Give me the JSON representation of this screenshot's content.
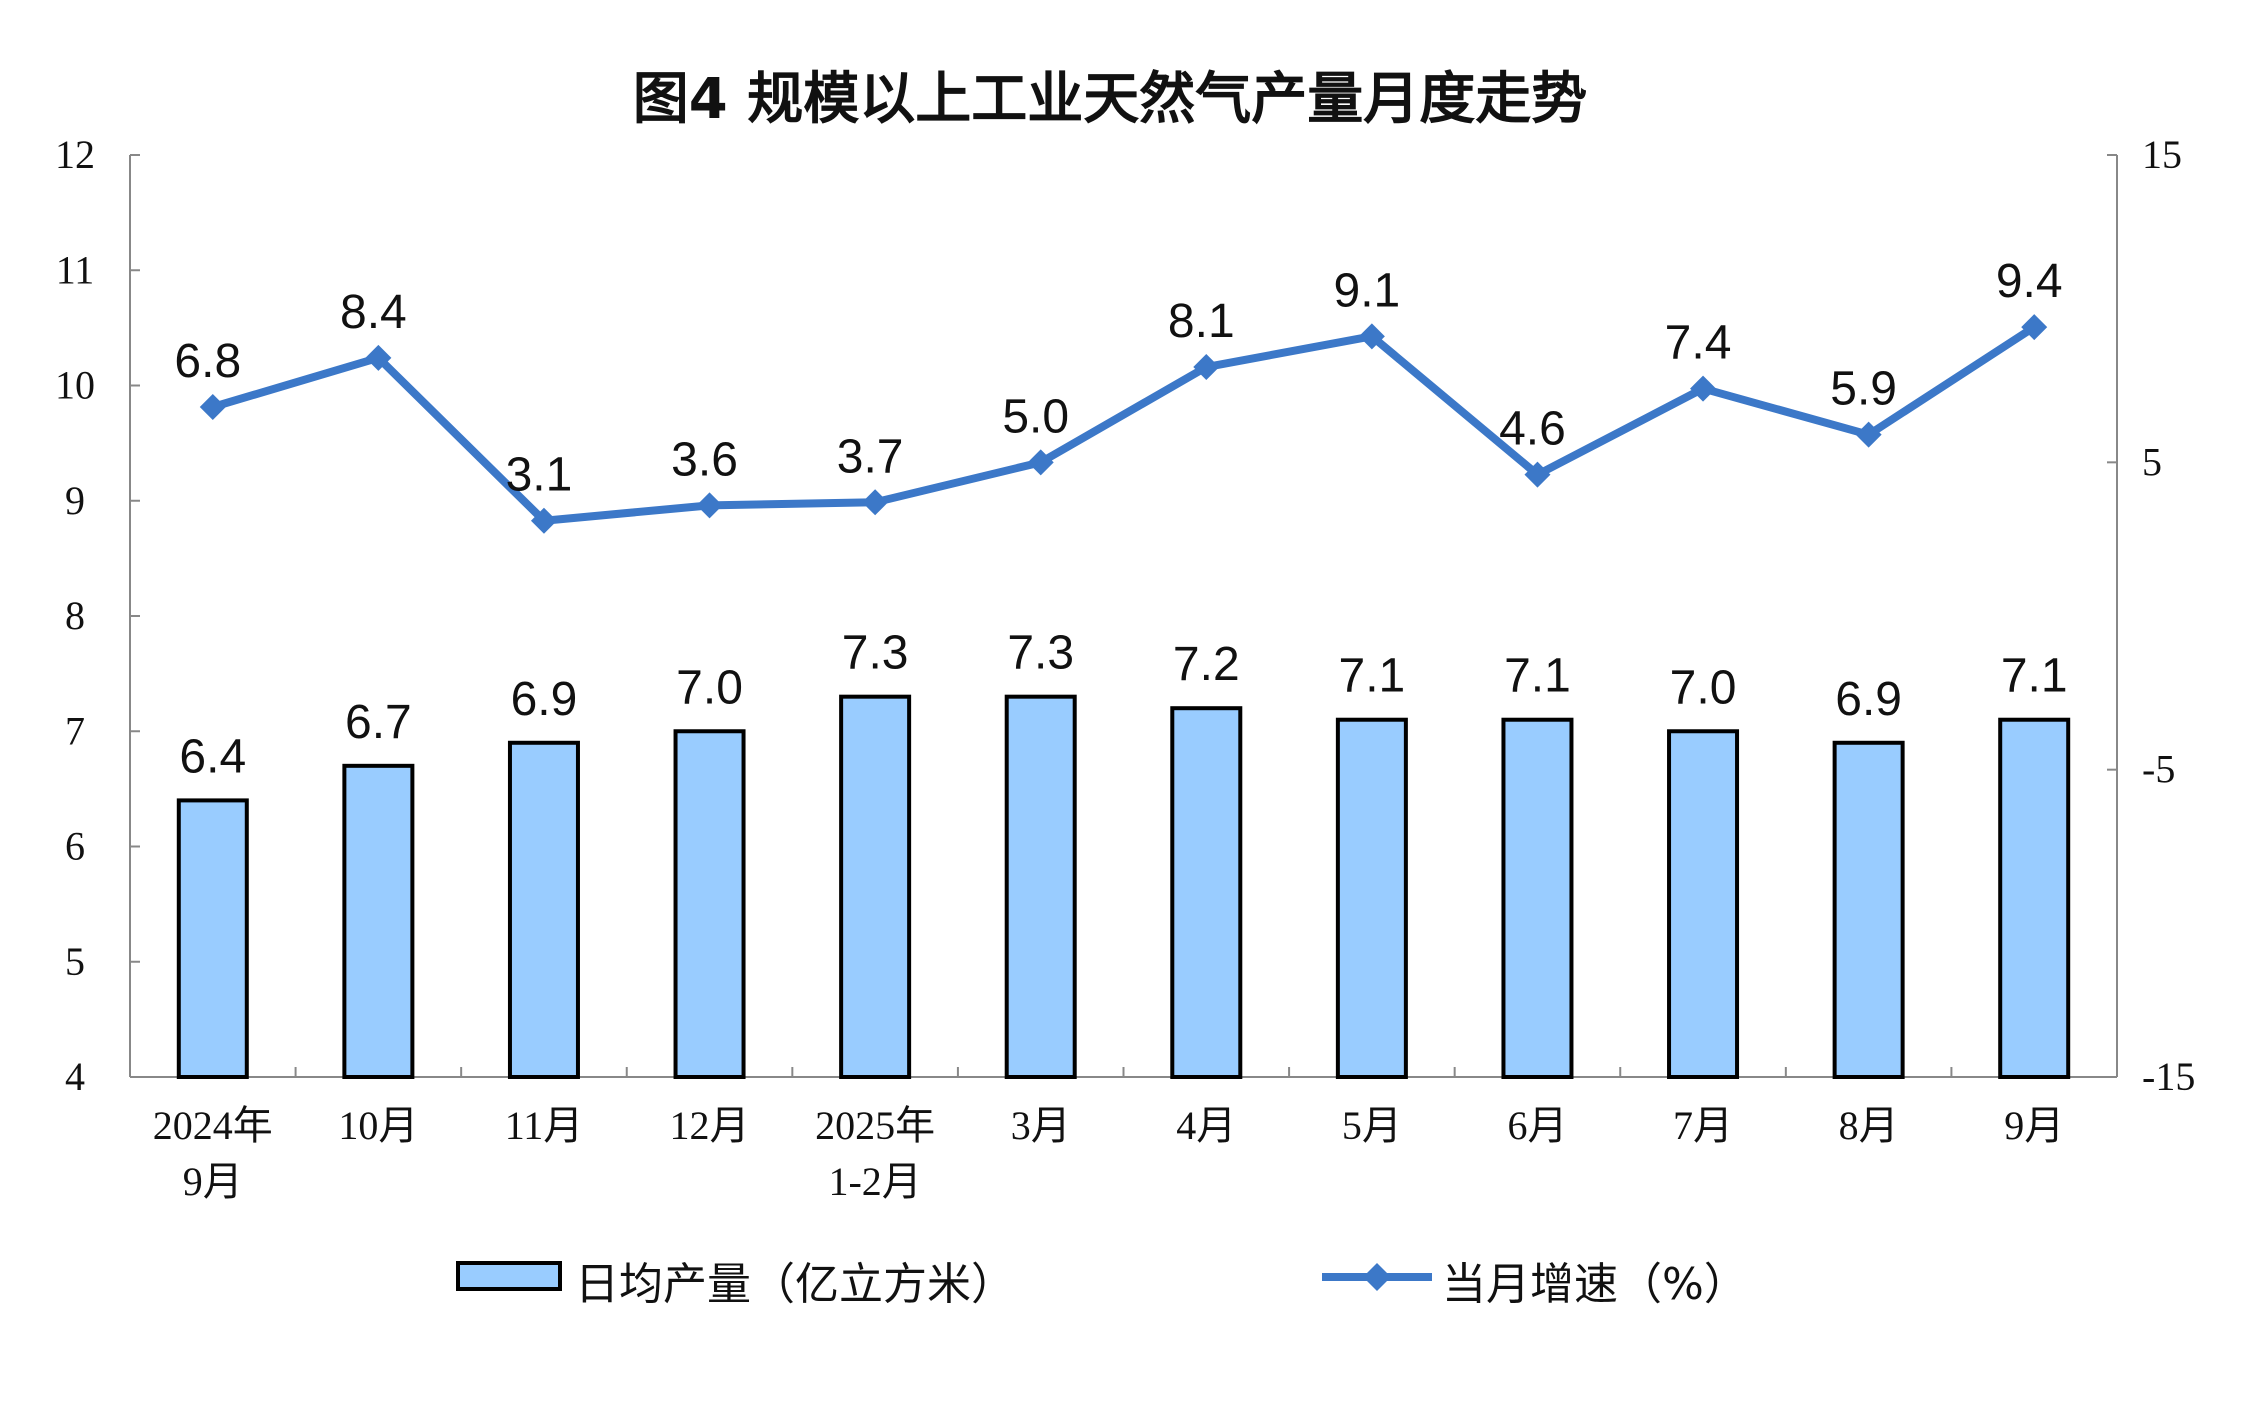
{
  "chart_data": {
    "type": "bar+line",
    "title": "图4  规模以上工业天然气产量月度走势",
    "categories": [
      [
        "2024年",
        "9月"
      ],
      [
        "10月"
      ],
      [
        "11月"
      ],
      [
        "12月"
      ],
      [
        "2025年",
        "1-2月"
      ],
      [
        "3月"
      ],
      [
        "4月"
      ],
      [
        "5月"
      ],
      [
        "6月"
      ],
      [
        "7月"
      ],
      [
        "8月"
      ],
      [
        "9月"
      ]
    ],
    "series": [
      {
        "name": "日均产量（亿立方米）",
        "type": "bar",
        "axis": "left",
        "color": "#99CCFF",
        "edge": "#000000",
        "values": [
          6.4,
          6.7,
          6.9,
          7.0,
          7.3,
          7.3,
          7.2,
          7.1,
          7.1,
          7.0,
          6.9,
          7.1
        ]
      },
      {
        "name": "当月增速（%）",
        "type": "line",
        "axis": "right",
        "color": "#3C78C8",
        "marker": "diamond",
        "values": [
          6.8,
          8.4,
          3.1,
          3.6,
          3.7,
          5.0,
          8.1,
          9.1,
          4.6,
          7.4,
          5.9,
          9.4
        ]
      }
    ],
    "y_left": {
      "range": [
        4,
        12
      ],
      "ticks": [
        4,
        5,
        6,
        7,
        8,
        9,
        10,
        11,
        12
      ]
    },
    "y_right": {
      "range": [
        -15,
        15
      ],
      "ticks": [
        -15,
        -5,
        5,
        15
      ]
    },
    "legend": "bottom",
    "grid": false
  }
}
